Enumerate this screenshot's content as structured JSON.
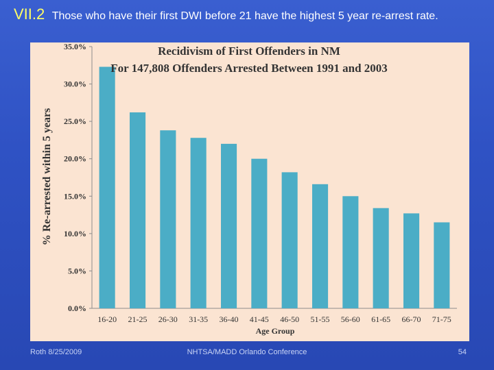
{
  "slide": {
    "number": "VII.2",
    "heading": "Those who have their first DWI before 21 have the highest 5 year re-arrest rate."
  },
  "footer": {
    "author_date": "Roth 8/25/2009",
    "conference": "NHTSA/MADD Orlando Conference",
    "page": "54"
  },
  "colors": {
    "bar": "#4badc6",
    "plot_background": "#fbe4d2",
    "slide_background": "#2f52c4"
  },
  "chart_data": {
    "type": "bar",
    "title": "Recidivism of First Offenders in NM",
    "subtitle": "For 147,808 Offenders Arrested Between 1991 and 2003",
    "xlabel": "Age Group",
    "ylabel": "% Re-arrested within 5 years",
    "categories": [
      "16-20",
      "21-25",
      "26-30",
      "31-35",
      "36-40",
      "41-45",
      "46-50",
      "51-55",
      "56-60",
      "61-65",
      "66-70",
      "71-75"
    ],
    "values": [
      32.3,
      26.2,
      23.8,
      22.8,
      22.0,
      20.0,
      18.2,
      16.6,
      15.0,
      13.4,
      12.7,
      11.5
    ],
    "ylim": [
      0,
      35
    ],
    "yticks": [
      "0.0%",
      "5.0%",
      "10.0%",
      "15.0%",
      "20.0%",
      "25.0%",
      "30.0%",
      "35.0%"
    ],
    "grid": false,
    "legend": "none"
  }
}
